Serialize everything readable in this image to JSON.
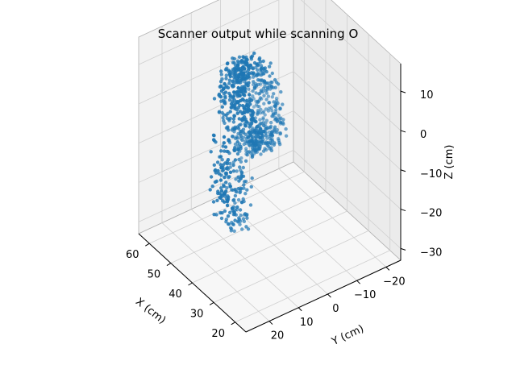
{
  "chart_data": {
    "type": "scatter",
    "projection": "3d",
    "title": "Scanner output while scanning O",
    "xlabel": "X (cm)",
    "ylabel": "Y (cm)",
    "zlabel": "Z (cm)",
    "xlim": [
      15,
      65
    ],
    "ylim": [
      -25,
      28
    ],
    "zlim": [
      -33,
      17
    ],
    "xticks": [
      20,
      30,
      40,
      50,
      60
    ],
    "yticks": [
      -20,
      -10,
      0,
      10,
      20
    ],
    "zticks": [
      -30,
      -20,
      -10,
      0,
      10
    ],
    "xtick_labels": [
      "20",
      "30",
      "40",
      "50",
      "60"
    ],
    "ytick_labels": [
      "−20",
      "−10",
      "0",
      "10",
      "20"
    ],
    "ztick_labels": [
      "−30",
      "−20",
      "−10",
      "0",
      "10"
    ],
    "grid": true,
    "marker_color": "#1f77b4",
    "point_count": 900,
    "series": [
      {
        "shape": "ring",
        "center": {
          "x": 44,
          "y": 5,
          "z": 2
        },
        "radius_x": 8.5,
        "radius_z": 9,
        "thickness": 3,
        "depth_y": [
          0,
          10
        ],
        "points": 700
      },
      {
        "shape": "lower-band",
        "x_range": [
          44,
          57
        ],
        "y_range": [
          4,
          10
        ],
        "z_range": [
          -30,
          -10
        ],
        "points": 200
      }
    ]
  }
}
